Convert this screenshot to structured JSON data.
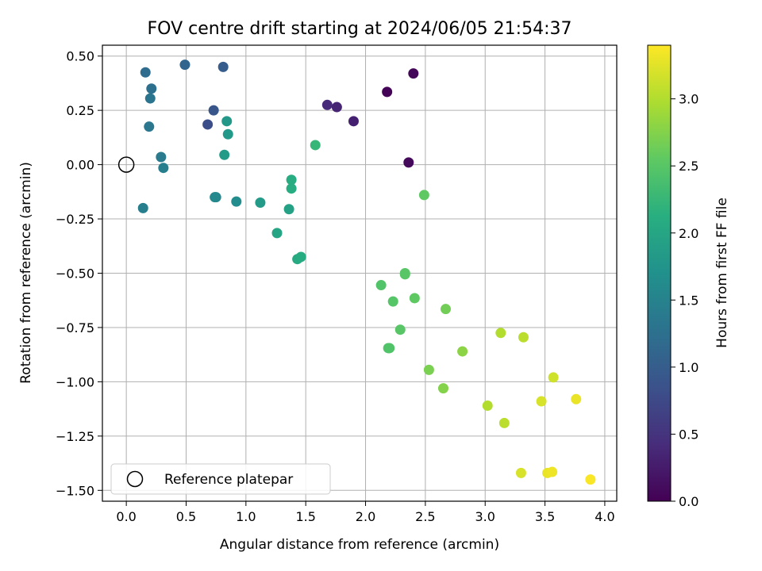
{
  "chart_data": {
    "type": "scatter",
    "title": "FOV centre drift starting at 2024/06/05 21:54:37",
    "xlabel": "Angular distance from reference (arcmin)",
    "ylabel": "Rotation from reference (arcmin)",
    "xlim": [
      -0.2,
      4.1
    ],
    "ylim": [
      -1.55,
      0.55
    ],
    "xticks": [
      0.0,
      0.5,
      1.0,
      1.5,
      2.0,
      2.5,
      3.0,
      3.5,
      4.0
    ],
    "xtick_labels": [
      "0.0",
      "0.5",
      "1.0",
      "1.5",
      "2.0",
      "2.5",
      "3.0",
      "3.5",
      "4.0"
    ],
    "yticks": [
      0.5,
      0.25,
      0.0,
      -0.25,
      -0.5,
      -0.75,
      -1.0,
      -1.25,
      -1.5
    ],
    "ytick_labels": [
      "0.50",
      "0.25",
      "0.00",
      "−0.25",
      "−0.50",
      "−0.75",
      "−1.00",
      "−1.25",
      "−1.50"
    ],
    "grid": true,
    "legend": {
      "placement": "lower-left",
      "entries": [
        "Reference platepar"
      ]
    },
    "reference_point": {
      "x": 0.0,
      "y": 0.0
    },
    "colorbar": {
      "label": "Hours from first FF file",
      "colormap": "viridis",
      "range": [
        0.0,
        3.4
      ],
      "ticks": [
        0.0,
        0.5,
        1.0,
        1.5,
        2.0,
        2.5,
        3.0
      ],
      "tick_labels": [
        "0.0",
        "0.5",
        "1.0",
        "1.5",
        "2.0",
        "2.5",
        "3.0"
      ]
    },
    "points": [
      {
        "x": 2.18,
        "y": 0.335,
        "h": 0.02
      },
      {
        "x": 2.4,
        "y": 0.42,
        "h": 0.05
      },
      {
        "x": 2.36,
        "y": 0.01,
        "h": 0.08
      },
      {
        "x": 1.9,
        "y": 0.2,
        "h": 0.3
      },
      {
        "x": 1.76,
        "y": 0.265,
        "h": 0.35
      },
      {
        "x": 1.68,
        "y": 0.275,
        "h": 0.4
      },
      {
        "x": 0.68,
        "y": 0.185,
        "h": 0.8
      },
      {
        "x": 0.73,
        "y": 0.25,
        "h": 0.9
      },
      {
        "x": 0.81,
        "y": 0.45,
        "h": 1.0
      },
      {
        "x": 0.49,
        "y": 0.46,
        "h": 1.1
      },
      {
        "x": 0.16,
        "y": 0.425,
        "h": 1.2
      },
      {
        "x": 0.21,
        "y": 0.35,
        "h": 1.25
      },
      {
        "x": 0.2,
        "y": 0.305,
        "h": 1.3
      },
      {
        "x": 0.19,
        "y": 0.175,
        "h": 1.35
      },
      {
        "x": 0.29,
        "y": 0.035,
        "h": 1.4
      },
      {
        "x": 0.31,
        "y": -0.015,
        "h": 1.45
      },
      {
        "x": 0.14,
        "y": -0.2,
        "h": 1.45
      },
      {
        "x": 0.75,
        "y": -0.15,
        "h": 1.55
      },
      {
        "x": 0.74,
        "y": -0.15,
        "h": 1.58
      },
      {
        "x": 0.92,
        "y": -0.17,
        "h": 1.65
      },
      {
        "x": 0.84,
        "y": 0.2,
        "h": 1.8
      },
      {
        "x": 0.85,
        "y": 0.14,
        "h": 1.82
      },
      {
        "x": 0.82,
        "y": 0.045,
        "h": 1.85
      },
      {
        "x": 1.12,
        "y": -0.175,
        "h": 1.85
      },
      {
        "x": 1.36,
        "y": -0.205,
        "h": 1.95
      },
      {
        "x": 1.26,
        "y": -0.315,
        "h": 2.0
      },
      {
        "x": 1.38,
        "y": -0.07,
        "h": 2.1
      },
      {
        "x": 1.38,
        "y": -0.11,
        "h": 2.1
      },
      {
        "x": 1.43,
        "y": -0.435,
        "h": 2.05
      },
      {
        "x": 1.46,
        "y": -0.425,
        "h": 2.08
      },
      {
        "x": 1.58,
        "y": 0.09,
        "h": 2.25
      },
      {
        "x": 2.49,
        "y": -0.14,
        "h": 2.55
      },
      {
        "x": 2.13,
        "y": -0.555,
        "h": 2.45
      },
      {
        "x": 2.23,
        "y": -0.63,
        "h": 2.48
      },
      {
        "x": 2.33,
        "y": -0.5,
        "h": 2.5
      },
      {
        "x": 2.33,
        "y": -0.505,
        "h": 2.5
      },
      {
        "x": 2.41,
        "y": -0.615,
        "h": 2.55
      },
      {
        "x": 2.29,
        "y": -0.76,
        "h": 2.5
      },
      {
        "x": 2.2,
        "y": -0.845,
        "h": 2.45
      },
      {
        "x": 2.19,
        "y": -0.845,
        "h": 2.45
      },
      {
        "x": 2.67,
        "y": -0.665,
        "h": 2.65
      },
      {
        "x": 2.53,
        "y": -0.945,
        "h": 2.7
      },
      {
        "x": 2.65,
        "y": -1.03,
        "h": 2.75
      },
      {
        "x": 2.81,
        "y": -0.86,
        "h": 2.8
      },
      {
        "x": 3.13,
        "y": -0.775,
        "h": 3.0
      },
      {
        "x": 3.32,
        "y": -0.795,
        "h": 3.05
      },
      {
        "x": 3.02,
        "y": -1.11,
        "h": 3.0
      },
      {
        "x": 3.16,
        "y": -1.19,
        "h": 3.05
      },
      {
        "x": 3.57,
        "y": -0.98,
        "h": 3.15
      },
      {
        "x": 3.47,
        "y": -1.09,
        "h": 3.2
      },
      {
        "x": 3.76,
        "y": -1.08,
        "h": 3.3
      },
      {
        "x": 3.3,
        "y": -1.42,
        "h": 3.2
      },
      {
        "x": 3.52,
        "y": -1.42,
        "h": 3.3
      },
      {
        "x": 3.56,
        "y": -1.415,
        "h": 3.32
      },
      {
        "x": 3.88,
        "y": -1.45,
        "h": 3.38
      }
    ]
  }
}
